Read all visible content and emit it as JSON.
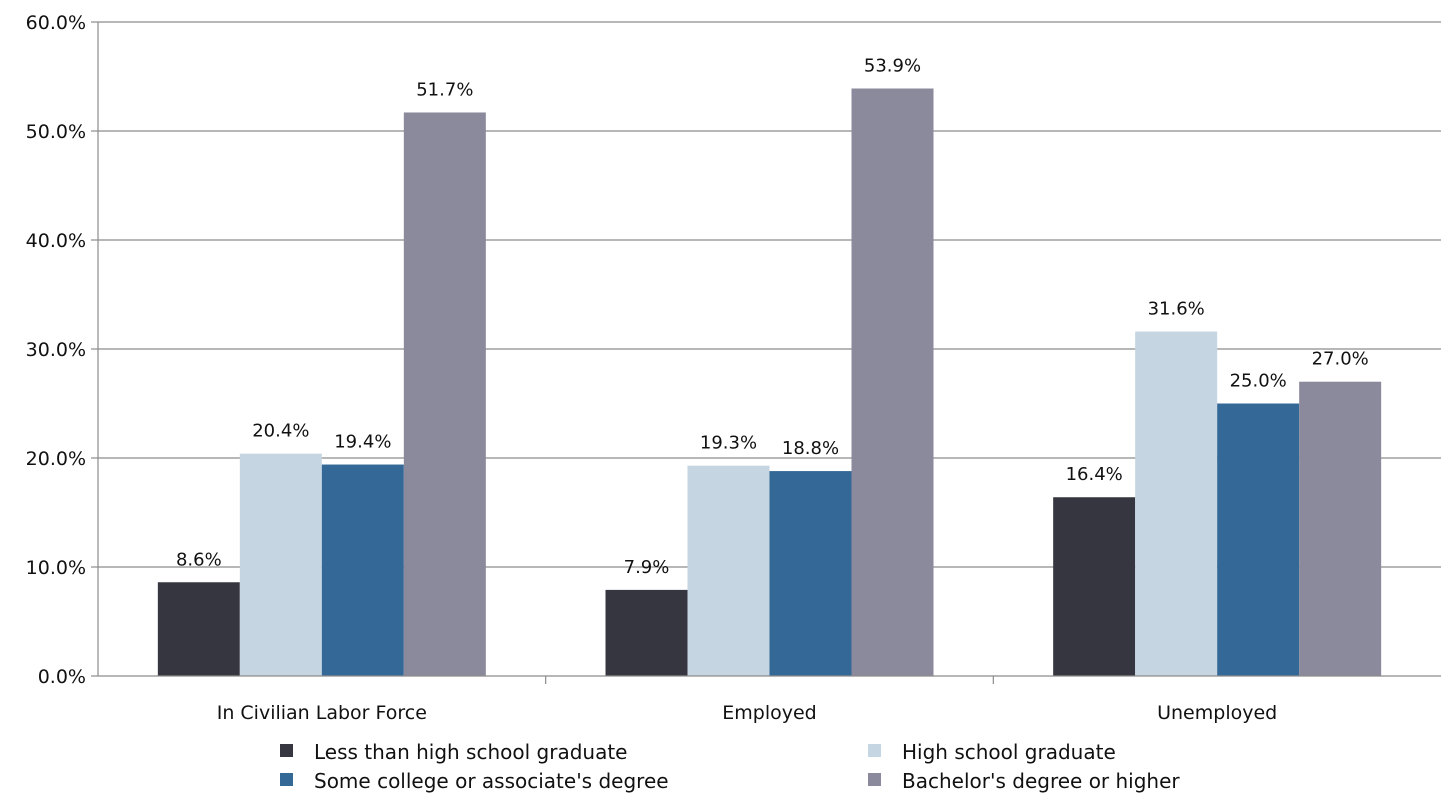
{
  "chart_data": {
    "type": "bar",
    "categories": [
      "In Civilian Labor Force",
      "Employed",
      "Unemployed"
    ],
    "series": [
      {
        "name": "Less than high school graduate",
        "color": "#35363f",
        "values": [
          8.6,
          7.9,
          16.4
        ],
        "labels": [
          "8.6%",
          "7.9%",
          "16.4%"
        ]
      },
      {
        "name": "High school graduate",
        "color": "#c5d5e2",
        "values": [
          20.4,
          19.3,
          31.6
        ],
        "labels": [
          "20.4%",
          "19.3%",
          "31.6%"
        ]
      },
      {
        "name": "Some college or associate's degree",
        "color": "#346897",
        "values": [
          19.4,
          18.8,
          25.0
        ],
        "labels": [
          "19.4%",
          "18.8%",
          "25.0%"
        ]
      },
      {
        "name": "Bachelor's degree or higher",
        "color": "#8b8a9c",
        "values": [
          51.7,
          53.9,
          27.0
        ],
        "labels": [
          "51.7%",
          "53.9%",
          "27.0%"
        ]
      }
    ],
    "ylim": [
      0,
      60
    ],
    "yticks": [
      "0.0%",
      "10.0%",
      "20.0%",
      "30.0%",
      "40.0%",
      "50.0%",
      "60.0%"
    ],
    "grid": true,
    "legend_position": "bottom"
  }
}
